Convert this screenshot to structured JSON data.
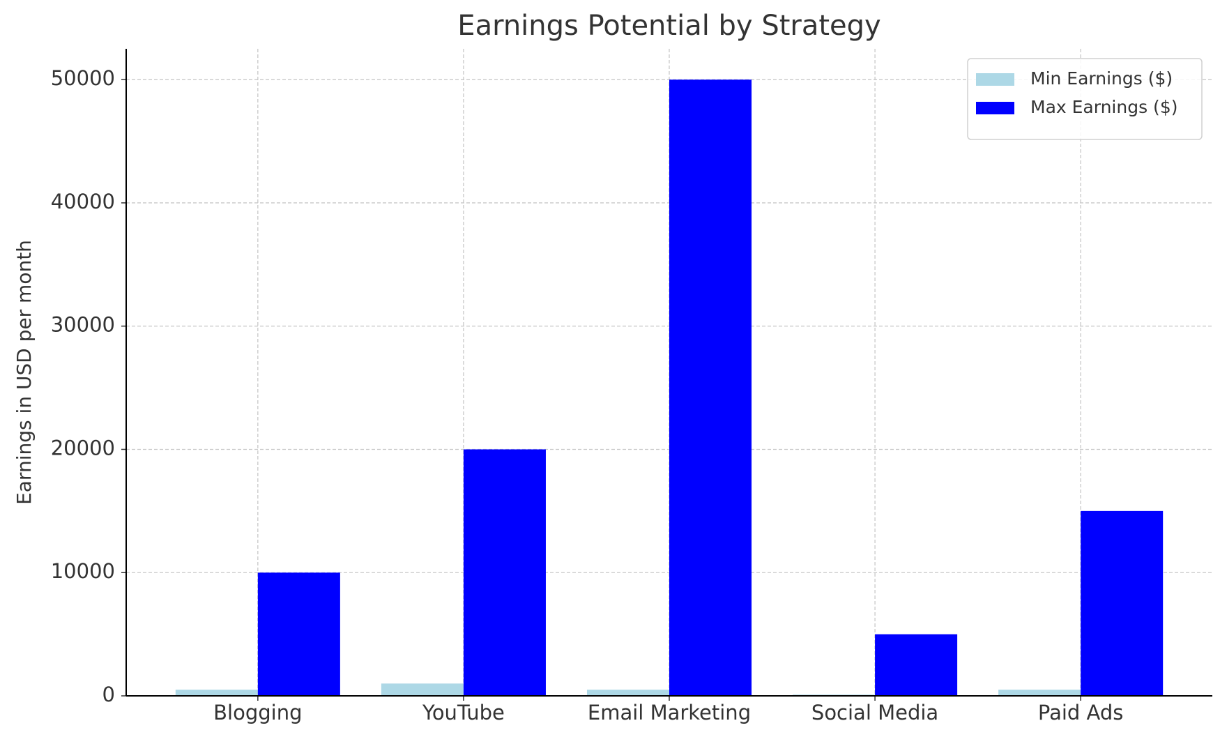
{
  "chart_data": {
    "type": "bar",
    "title": "Earnings Potential by Strategy",
    "y_label": "Earnings in USD per month",
    "categories": [
      "Blogging",
      "YouTube",
      "Email Marketing",
      "Social Media",
      "Paid Ads"
    ],
    "series": [
      {
        "name": "Min Earnings ($)",
        "color": "#add8e6",
        "values": [
          500,
          1000,
          500,
          100,
          500
        ]
      },
      {
        "name": "Max Earnings ($)",
        "color": "#0000ff",
        "values": [
          10000,
          20000,
          50000,
          5000,
          15000
        ]
      }
    ],
    "ylim": [
      0,
      52500
    ],
    "yticks": [
      0,
      10000,
      20000,
      30000,
      40000,
      50000
    ],
    "grid": true,
    "legend": "upper right"
  }
}
